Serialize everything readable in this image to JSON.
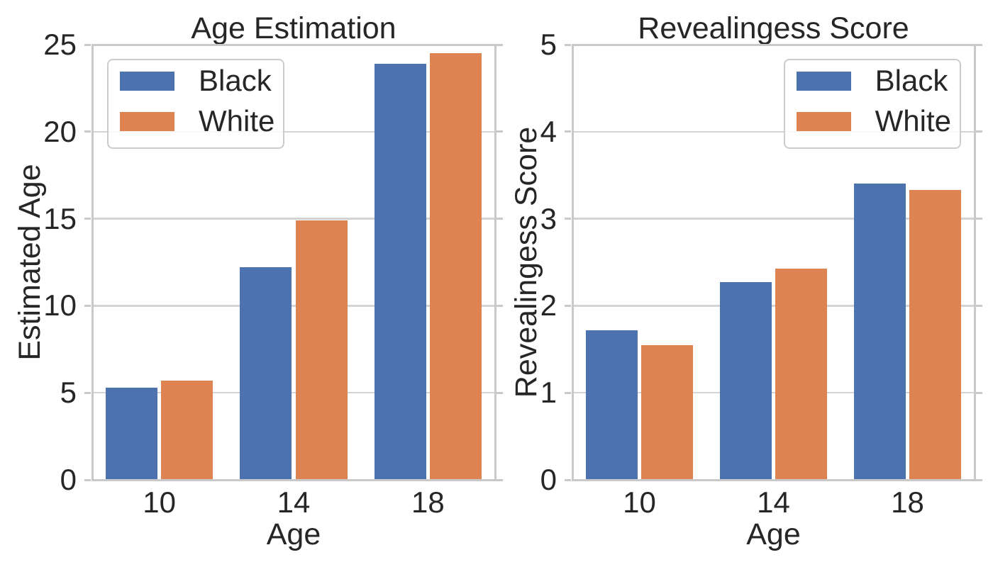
{
  "theme": {
    "background": "#ffffff",
    "text_color": "#262626",
    "grid_color": "#d4d4d4",
    "spine_color": "#c9c9c9",
    "series_colors": {
      "black": "#4C72B0",
      "white": "#DD8452"
    }
  },
  "chart_data": [
    {
      "type": "bar",
      "title": "Age Estimation",
      "xlabel": "Age",
      "ylabel": "Estimated Age",
      "categories": [
        "10",
        "14",
        "18"
      ],
      "yticks": [
        0,
        5,
        10,
        15,
        20,
        25
      ],
      "ylim": [
        0,
        25
      ],
      "grid": "horizontal",
      "legend_position": "upper left",
      "series": [
        {
          "name": "Black",
          "color": "#4C72B0",
          "values": [
            5.3,
            12.2,
            23.9
          ]
        },
        {
          "name": "White",
          "color": "#DD8452",
          "values": [
            5.7,
            14.9,
            24.5
          ]
        }
      ]
    },
    {
      "type": "bar",
      "title": "Revealingess Score",
      "xlabel": "Age",
      "ylabel": "Revealingess Score",
      "categories": [
        "10",
        "14",
        "18"
      ],
      "yticks": [
        0,
        1,
        2,
        3,
        4,
        5
      ],
      "ylim": [
        0,
        5
      ],
      "grid": "horizontal",
      "legend_position": "upper right",
      "series": [
        {
          "name": "Black",
          "color": "#4C72B0",
          "values": [
            1.72,
            2.27,
            3.4
          ]
        },
        {
          "name": "White",
          "color": "#DD8452",
          "values": [
            1.55,
            2.43,
            3.33
          ]
        }
      ]
    }
  ]
}
